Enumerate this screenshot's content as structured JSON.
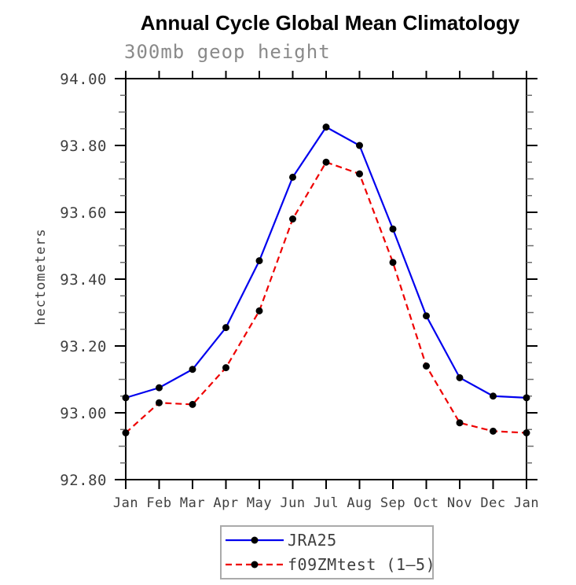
{
  "chart_data": {
    "type": "line",
    "title": "Annual Cycle Global Mean Climatology",
    "subtitle": "300mb geop height",
    "ylabel": "hectometers",
    "xlabel": "",
    "categories": [
      "Jan",
      "Feb",
      "Mar",
      "Apr",
      "May",
      "Jun",
      "Jul",
      "Aug",
      "Sep",
      "Oct",
      "Nov",
      "Dec",
      "Jan"
    ],
    "series": [
      {
        "name": "JRA25",
        "style": "solid",
        "color": "#0000ee",
        "marker": "filled-circle",
        "marker_color": "#000000",
        "values": [
          93.045,
          93.075,
          93.13,
          93.255,
          93.455,
          93.705,
          93.855,
          93.8,
          93.55,
          93.29,
          93.105,
          93.05,
          93.045
        ]
      },
      {
        "name": "f09ZMtest (1–5)",
        "style": "dashed",
        "color": "#ee0000",
        "marker": "filled-circle",
        "marker_color": "#000000",
        "values": [
          92.94,
          93.03,
          93.025,
          93.135,
          93.305,
          93.58,
          93.75,
          93.715,
          93.45,
          93.14,
          92.97,
          92.945,
          92.94
        ]
      }
    ],
    "ylim": [
      92.8,
      94.0
    ],
    "y_major_ticks": [
      94.0,
      93.8,
      93.6,
      93.4,
      93.2,
      93.0,
      92.8
    ],
    "y_tick_labels": [
      "94.00",
      "93.80",
      "93.60",
      "93.40",
      "93.20",
      "93.00",
      "92.80"
    ],
    "y_minor_step": 0.05,
    "grid": false,
    "legend_position": "bottom-center",
    "colors": {
      "frame": "#000000",
      "axis_text": "#3f3f3f",
      "subtitle_text": "#8a8a8a",
      "minor_tick": "#6e6e6e",
      "legend_border": "#aaaaaa"
    }
  }
}
